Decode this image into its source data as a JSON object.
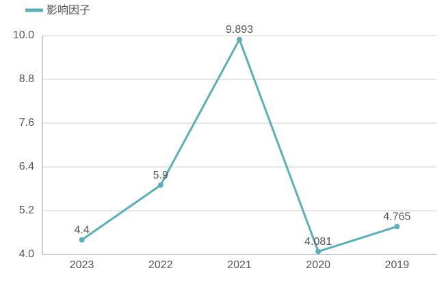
{
  "chart_data": {
    "type": "line",
    "legend": "top-left",
    "categories": [
      "2023",
      "2022",
      "2021",
      "2020",
      "2019"
    ],
    "series": [
      {
        "name": "影响因子",
        "color": "#5aafba",
        "values": [
          4.4,
          5.9,
          9.893,
          4.081,
          4.765
        ]
      }
    ],
    "ylim": [
      4,
      10
    ],
    "yticks": [
      {
        "value": 4,
        "label": "4.0"
      },
      5.2,
      6.4,
      7.6,
      8.8,
      {
        "value": 10,
        "label": "10.0"
      }
    ],
    "grid": true
  }
}
